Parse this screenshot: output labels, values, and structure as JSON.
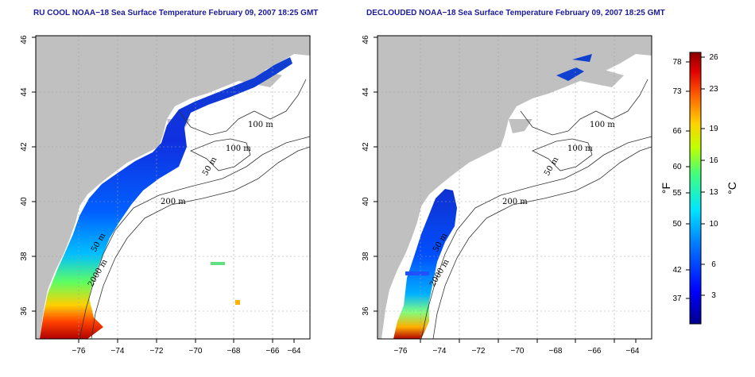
{
  "maps": [
    {
      "title": "RU COOL NOAA−18 Sea Surface Temperature February 09, 2007 18:25 GMT",
      "x_ticks": [
        "−76",
        "−74",
        "−72",
        "−70",
        "−68",
        "−66",
        "−64"
      ],
      "y_ticks": [
        "36",
        "38",
        "40",
        "42",
        "44",
        "46"
      ],
      "contour_labels": [
        "100 m",
        "100 m",
        "50 m",
        "200 m",
        "50 m",
        "2000 m"
      ]
    },
    {
      "title": "DECLOUDED NOAA−18 Sea Surface Temperature February 09, 2007 18:25 GMT",
      "x_ticks": [
        "−76",
        "−74",
        "−72",
        "−70",
        "−68",
        "−66",
        "−64"
      ],
      "y_ticks": [
        "36",
        "38",
        "40",
        "42",
        "44",
        "46"
      ],
      "contour_labels": [
        "100 m",
        "100 m",
        "50 m",
        "200 m",
        "50 m",
        "2000 m"
      ]
    }
  ],
  "colorbar": {
    "fahrenheit_label": "°F",
    "celsius_label": "°C",
    "fahrenheit_ticks": [
      "78",
      "73",
      "66",
      "60",
      "55",
      "50",
      "42",
      "37"
    ],
    "celsius_ticks": [
      "26",
      "23",
      "19",
      "16",
      "13",
      "10",
      "6",
      "3"
    ],
    "colors": [
      "#00008b",
      "#0000ff",
      "#0080ff",
      "#00e5ff",
      "#40ff80",
      "#c0ff00",
      "#ffd000",
      "#ff6000",
      "#e00000",
      "#8b0000"
    ]
  }
}
